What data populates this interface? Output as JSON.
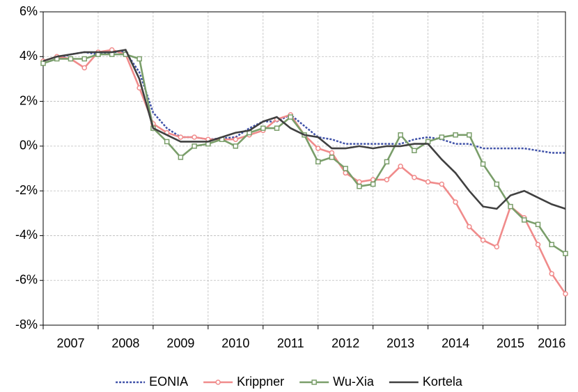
{
  "chart_data": {
    "type": "line",
    "x": [
      2007.0,
      2007.25,
      2007.5,
      2007.75,
      2008.0,
      2008.25,
      2008.5,
      2008.75,
      2009.0,
      2009.25,
      2009.5,
      2009.75,
      2010.0,
      2010.25,
      2010.5,
      2010.75,
      2011.0,
      2011.25,
      2011.5,
      2011.75,
      2012.0,
      2012.25,
      2012.5,
      2012.75,
      2013.0,
      2013.25,
      2013.5,
      2013.75,
      2014.0,
      2014.25,
      2014.5,
      2014.75,
      2015.0,
      2015.25,
      2015.5,
      2015.75,
      2016.0,
      2016.25,
      2016.5
    ],
    "series": [
      {
        "name": "EONIA",
        "color": "#3f51a8",
        "dash": "dotted",
        "marker": "none",
        "values": [
          3.7,
          3.9,
          4.1,
          4.2,
          4.1,
          4.2,
          4.2,
          3.3,
          1.5,
          0.8,
          0.4,
          0.4,
          0.3,
          0.35,
          0.4,
          0.8,
          1.1,
          1.1,
          1.4,
          0.9,
          0.4,
          0.3,
          0.1,
          0.1,
          0.1,
          0.1,
          0.1,
          0.3,
          0.4,
          0.3,
          0.1,
          0.1,
          -0.1,
          -0.1,
          -0.1,
          -0.1,
          -0.2,
          -0.3,
          -0.3
        ]
      },
      {
        "name": "Krippner",
        "color": "#f08b8b",
        "dash": "solid",
        "marker": "circle",
        "values": [
          3.8,
          4.0,
          3.9,
          3.5,
          4.2,
          4.3,
          4.1,
          2.6,
          1.0,
          0.6,
          0.4,
          0.4,
          0.3,
          0.3,
          0.3,
          0.5,
          0.7,
          1.2,
          1.4,
          0.5,
          -0.1,
          -0.3,
          -1.2,
          -1.6,
          -1.5,
          -1.5,
          -0.9,
          -1.4,
          -1.6,
          -1.7,
          -2.5,
          -3.6,
          -4.2,
          -4.5,
          -2.7,
          -3.2,
          -4.4,
          -5.7,
          -6.6
        ]
      },
      {
        "name": "Wu-Xia",
        "color": "#7a9e6a",
        "dash": "solid",
        "marker": "square",
        "values": [
          3.7,
          3.9,
          3.9,
          3.9,
          4.1,
          4.1,
          4.1,
          3.9,
          0.8,
          0.2,
          -0.5,
          0.0,
          0.1,
          0.3,
          0.0,
          0.6,
          0.8,
          0.8,
          1.3,
          0.5,
          -0.7,
          -0.5,
          -1.0,
          -1.8,
          -1.7,
          -0.7,
          0.5,
          -0.2,
          0.2,
          0.4,
          0.5,
          0.5,
          -0.8,
          -1.7,
          -2.7,
          -3.3,
          -3.5,
          -4.4,
          -4.8
        ]
      },
      {
        "name": "Kortela",
        "color": "#404040",
        "dash": "solid",
        "marker": "none",
        "values": [
          3.8,
          4.0,
          4.1,
          4.2,
          4.2,
          4.2,
          4.3,
          3.0,
          0.8,
          0.5,
          0.2,
          0.2,
          0.2,
          0.4,
          0.6,
          0.7,
          1.1,
          1.3,
          0.8,
          0.5,
          0.4,
          -0.1,
          -0.1,
          0.0,
          -0.1,
          0.0,
          0.0,
          0.1,
          0.1,
          -0.6,
          -1.2,
          -2.0,
          -2.7,
          -2.8,
          -2.2,
          -2.0,
          -2.3,
          -2.6,
          -2.8
        ]
      }
    ],
    "xlim": [
      2007,
      2016.5
    ],
    "xticks": [
      2007,
      2008,
      2009,
      2010,
      2011,
      2012,
      2013,
      2014,
      2015,
      2016
    ],
    "ylim": [
      -8,
      6
    ],
    "yticks": [
      {
        "value": -8,
        "label": "-8%"
      },
      {
        "value": -6,
        "label": "-6%"
      },
      {
        "value": -4,
        "label": "-4%"
      },
      {
        "value": -2,
        "label": "-2%"
      },
      {
        "value": 0,
        "label": "0%"
      },
      {
        "value": 2,
        "label": "2%"
      },
      {
        "value": 4,
        "label": "4%"
      },
      {
        "value": 6,
        "label": "6%"
      }
    ],
    "grid": true,
    "legend": "bottom"
  }
}
